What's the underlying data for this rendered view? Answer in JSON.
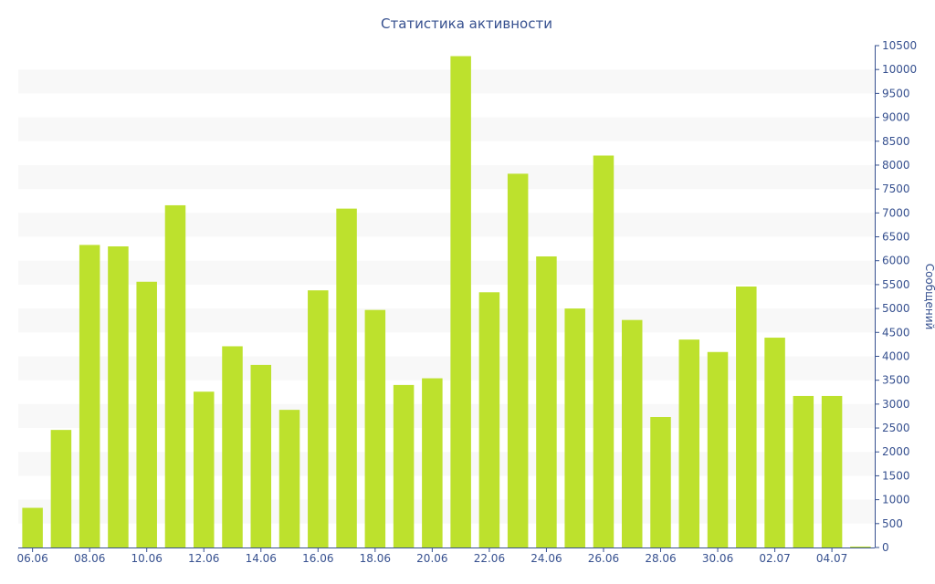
{
  "chart_data": {
    "type": "bar",
    "title": "Статистика активности",
    "xlabel": "",
    "ylabel": "Сообщений",
    "ylim": [
      0,
      10500
    ],
    "y_tick_step": 500,
    "y_axis_side": "right",
    "grid": "alternating horizontal bands",
    "bar_color": "#bde12d",
    "band_color": "#f8f8f8",
    "text_color": "#36508f",
    "categories": [
      "06.06",
      "07.06",
      "08.06",
      "09.06",
      "10.06",
      "11.06",
      "12.06",
      "13.06",
      "14.06",
      "15.06",
      "16.06",
      "17.06",
      "18.06",
      "19.06",
      "20.06",
      "21.06",
      "22.06",
      "23.06",
      "24.06",
      "25.06",
      "26.06",
      "27.06",
      "28.06",
      "29.06",
      "30.06",
      "01.07",
      "02.07",
      "03.07",
      "04.07",
      "05.07"
    ],
    "x_tick_labels": [
      "06.06",
      "08.06",
      "10.06",
      "12.06",
      "14.06",
      "16.06",
      "18.06",
      "20.06",
      "22.06",
      "24.06",
      "26.06",
      "28.06",
      "30.06",
      "02.07",
      "04.07"
    ],
    "values": [
      830,
      2460,
      6330,
      6300,
      5560,
      7160,
      3260,
      4210,
      3820,
      2880,
      5380,
      7090,
      4970,
      3400,
      3540,
      10280,
      5340,
      7820,
      6090,
      5000,
      8200,
      4760,
      2730,
      4350,
      4090,
      5460,
      4390,
      3170,
      3170,
      20
    ]
  }
}
